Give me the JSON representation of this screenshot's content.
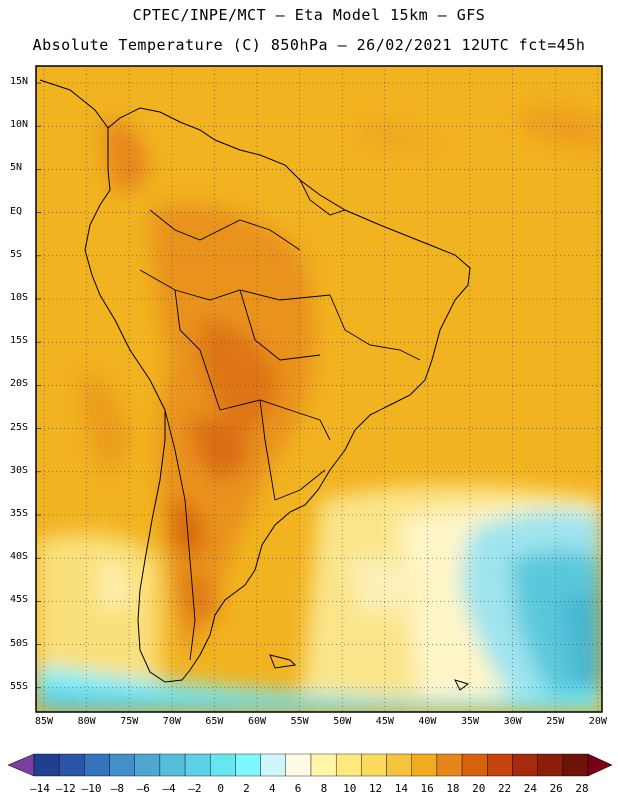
{
  "header": {
    "line1": "CPTEC/INPE/MCT –  Eta Model 15km – GFS",
    "line2": "Absolute Temperature (C) 850hPa – 26/02/2021 12UTC fct=45h"
  },
  "map": {
    "lat_ticks": [
      "15N",
      "10N",
      "5N",
      "EQ",
      "5S",
      "10S",
      "15S",
      "20S",
      "25S",
      "30S",
      "35S",
      "40S",
      "45S",
      "50S",
      "55S"
    ],
    "lon_ticks": [
      "85W",
      "80W",
      "75W",
      "70W",
      "65W",
      "60W",
      "55W",
      "50W",
      "45W",
      "40W",
      "35W",
      "30W",
      "25W",
      "20W"
    ],
    "grid": "dotted",
    "field": "temperature-850hPa"
  },
  "colorbar": {
    "labels": [
      "-14",
      "-12",
      "-10",
      "-8",
      "-6",
      "-4",
      "-2",
      "0",
      "2",
      "4",
      "6",
      "8",
      "10",
      "12",
      "14",
      "16",
      "18",
      "20",
      "22",
      "24",
      "26",
      "28"
    ],
    "colors": [
      "#1f3f8f",
      "#2a55a8",
      "#3573bd",
      "#4390c8",
      "#4fa8d2",
      "#55bedb",
      "#5dd2e6",
      "#66e6f0",
      "#7ff7ff",
      "#cdf7fb",
      "#fffbe6",
      "#fff6a8",
      "#fde97e",
      "#fadb5e",
      "#f5c43d",
      "#f0ab1f",
      "#e6861a",
      "#d7620e",
      "#c54410",
      "#a62b0c",
      "#8a1e0b",
      "#6f1208"
    ]
  }
}
